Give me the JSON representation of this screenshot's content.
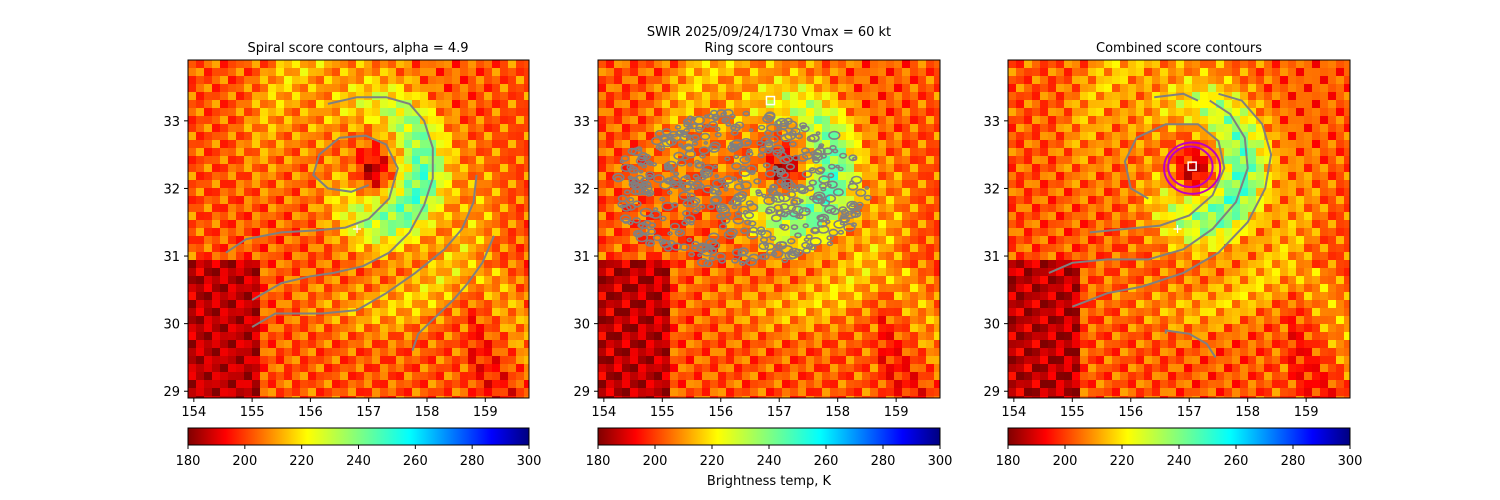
{
  "figure": {
    "suptitle_line1": "SWIR  2025/09/24/1730    Vmax = 60 kt",
    "colorbar_label": "Brightness temp, K"
  },
  "chart_data": [
    {
      "type": "heatmap",
      "title": "Spiral score contours, alpha =  4.9",
      "xlim": [
        153.9,
        159.75
      ],
      "ylim": [
        28.9,
        33.9
      ],
      "xticks": [
        154,
        155,
        156,
        157,
        158,
        159
      ],
      "yticks": [
        29,
        30,
        31,
        32,
        33
      ],
      "xlabel": "",
      "ylabel": "",
      "contours": [
        {
          "color": "#808080",
          "points": [
            [
              155.0,
              30.35
            ],
            [
              155.5,
              30.6
            ],
            [
              156.0,
              30.7
            ],
            [
              156.4,
              30.75
            ],
            [
              156.9,
              30.85
            ],
            [
              157.35,
              31.05
            ],
            [
              157.7,
              31.35
            ],
            [
              157.95,
              31.75
            ],
            [
              158.1,
              32.15
            ],
            [
              158.1,
              32.6
            ],
            [
              157.95,
              33.0
            ],
            [
              157.7,
              33.25
            ],
            [
              157.3,
              33.35
            ],
            [
              156.8,
              33.35
            ],
            [
              156.3,
              33.25
            ]
          ]
        },
        {
          "color": "#808080",
          "points": [
            [
              154.55,
              31.05
            ],
            [
              154.9,
              31.25
            ],
            [
              155.5,
              31.35
            ],
            [
              156.1,
              31.38
            ],
            [
              156.6,
              31.42
            ],
            [
              157.0,
              31.55
            ],
            [
              157.35,
              31.85
            ],
            [
              157.5,
              32.3
            ],
            [
              157.3,
              32.65
            ],
            [
              156.95,
              32.78
            ],
            [
              156.5,
              32.75
            ],
            [
              156.15,
              32.5
            ],
            [
              156.05,
              32.2
            ],
            [
              156.3,
              32.0
            ],
            [
              156.7,
              31.95
            ],
            [
              157.0,
              32.05
            ]
          ]
        },
        {
          "color": "#808080",
          "points": [
            [
              155.0,
              29.95
            ],
            [
              155.4,
              30.15
            ],
            [
              156.2,
              30.15
            ],
            [
              156.8,
              30.2
            ],
            [
              157.3,
              30.45
            ],
            [
              157.8,
              30.75
            ],
            [
              158.3,
              31.1
            ],
            [
              158.6,
              31.4
            ],
            [
              158.8,
              31.8
            ],
            [
              158.85,
              32.2
            ]
          ]
        },
        {
          "color": "#808080",
          "points": [
            [
              157.75,
              29.6
            ],
            [
              157.85,
              29.85
            ],
            [
              158.15,
              30.1
            ],
            [
              158.45,
              30.35
            ],
            [
              158.7,
              30.6
            ],
            [
              158.95,
              30.9
            ],
            [
              159.15,
              31.3
            ]
          ]
        }
      ],
      "markers": [
        {
          "kind": "plus",
          "x": 156.8,
          "y": 31.4,
          "color": "#ffffff"
        }
      ]
    },
    {
      "type": "heatmap",
      "title": "Ring score contours",
      "xlim": [
        153.9,
        159.75
      ],
      "ylim": [
        28.9,
        33.9
      ],
      "xticks": [
        154,
        155,
        156,
        157,
        158,
        159
      ],
      "yticks": [
        29,
        30,
        31,
        32,
        33
      ],
      "xlabel": "",
      "ylabel": "",
      "contour_region": {
        "color": "#808080",
        "center": [
          156.35,
          32.0
        ],
        "rx": 2.2,
        "ry": 1.15,
        "cover": "dense"
      },
      "markers": [
        {
          "kind": "square",
          "x": 156.85,
          "y": 33.3,
          "color": "#ffffff"
        }
      ]
    },
    {
      "type": "heatmap",
      "title": "Combined score contours",
      "xlim": [
        153.9,
        159.75
      ],
      "ylim": [
        28.9,
        33.9
      ],
      "xticks": [
        154,
        155,
        156,
        157,
        158,
        159
      ],
      "yticks": [
        29,
        30,
        31,
        32,
        33
      ],
      "xlabel": "",
      "ylabel": "",
      "contours": [
        {
          "color": "#808080",
          "points": [
            [
              154.6,
              30.75
            ],
            [
              155.0,
              30.9
            ],
            [
              155.6,
              30.95
            ],
            [
              156.3,
              30.95
            ],
            [
              156.9,
              31.1
            ],
            [
              157.4,
              31.4
            ],
            [
              157.8,
              31.8
            ],
            [
              158.0,
              32.3
            ],
            [
              157.95,
              32.75
            ],
            [
              157.7,
              33.1
            ],
            [
              157.35,
              33.3
            ]
          ]
        },
        {
          "color": "#808080",
          "points": [
            [
              155.0,
              30.25
            ],
            [
              155.6,
              30.45
            ],
            [
              156.2,
              30.55
            ],
            [
              156.9,
              30.75
            ],
            [
              157.5,
              31.05
            ],
            [
              158.0,
              31.5
            ],
            [
              158.3,
              32.0
            ],
            [
              158.4,
              32.5
            ],
            [
              158.25,
              32.95
            ],
            [
              157.9,
              33.3
            ],
            [
              157.5,
              33.4
            ]
          ]
        },
        {
          "color": "#808080",
          "points": [
            [
              155.3,
              31.35
            ],
            [
              155.9,
              31.4
            ],
            [
              156.5,
              31.45
            ],
            [
              157.0,
              31.6
            ],
            [
              157.4,
              31.9
            ],
            [
              157.6,
              32.3
            ],
            [
              157.5,
              32.7
            ],
            [
              157.15,
              32.95
            ],
            [
              156.6,
              32.95
            ],
            [
              156.1,
              32.75
            ],
            [
              155.9,
              32.4
            ],
            [
              156.0,
              32.0
            ],
            [
              156.3,
              31.85
            ]
          ]
        },
        {
          "color": "#808080",
          "points": [
            [
              156.6,
              29.85
            ],
            [
              156.6,
              29.9
            ],
            [
              157.0,
              29.85
            ],
            [
              157.3,
              29.7
            ],
            [
              157.45,
              29.5
            ]
          ]
        },
        {
          "color": "#808080",
          "points": [
            [
              156.4,
              33.35
            ],
            [
              156.9,
              33.4
            ],
            [
              157.15,
              33.3
            ]
          ]
        }
      ],
      "rings": [
        {
          "color": "#c000c0",
          "x": 157.05,
          "y": 32.3,
          "rx": 0.48,
          "ry": 0.38
        },
        {
          "color": "#c000c0",
          "x": 157.02,
          "y": 32.32,
          "rx": 0.38,
          "ry": 0.3
        }
      ],
      "markers": [
        {
          "kind": "plus",
          "x": 156.8,
          "y": 31.4,
          "color": "#ffffff"
        },
        {
          "kind": "square",
          "x": 157.05,
          "y": 32.33,
          "color": "#ffffff"
        }
      ]
    }
  ],
  "colorbar": {
    "ticks": [
      180,
      200,
      220,
      240,
      260,
      280,
      300
    ],
    "range": [
      180,
      300
    ],
    "colormap": "jet_r"
  }
}
